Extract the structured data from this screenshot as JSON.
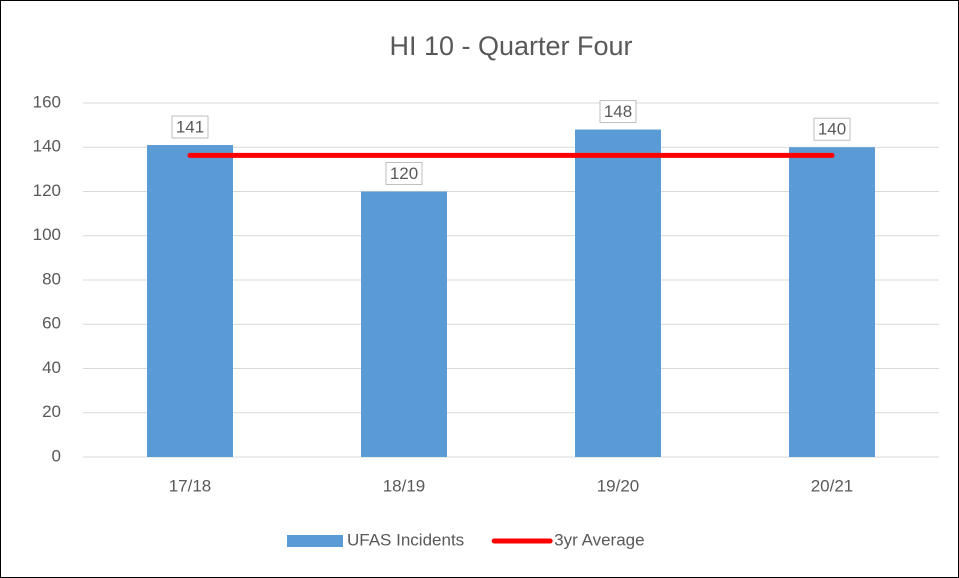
{
  "chart_data": {
    "type": "bar",
    "title": "HI 10 - Quarter Four",
    "categories": [
      "17/18",
      "18/19",
      "19/20",
      "20/21"
    ],
    "series": [
      {
        "name": "UFAS Incidents",
        "color": "#5b9bd5",
        "values": [
          141,
          120,
          148,
          140
        ]
      },
      {
        "name": "3yr Average",
        "type": "line",
        "color": "#ff0000",
        "values": [
          136.3,
          136.3,
          136.3,
          136.3
        ]
      }
    ],
    "ylim": [
      0,
      160
    ],
    "yticks": [
      0,
      20,
      40,
      60,
      80,
      100,
      120,
      140,
      160
    ],
    "grid": true,
    "legend": "bottom"
  }
}
